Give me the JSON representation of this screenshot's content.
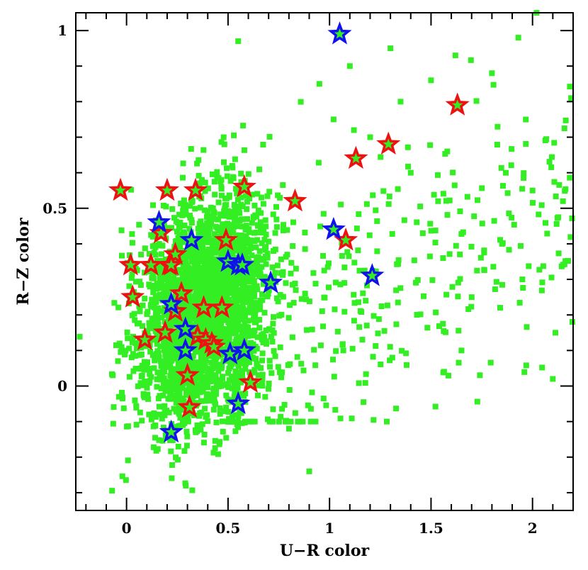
{
  "chart_data": {
    "type": "scatter",
    "xlabel": "U−R color",
    "ylabel": "R−Z color",
    "xlim": [
      -0.25,
      2.2
    ],
    "ylim": [
      -0.35,
      1.05
    ],
    "x_ticks": [
      0,
      0.5,
      1,
      1.5,
      2
    ],
    "x_tick_labels": [
      "0",
      "0.5",
      "1",
      "1.5",
      "2"
    ],
    "y_ticks": [
      0,
      0.5,
      1
    ],
    "y_tick_labels": [
      "0",
      "0.5",
      "1"
    ],
    "grid": false,
    "colors": {
      "background_points": "#33ee22",
      "red_stars": "#ee1111",
      "blue_stars": "#1111ee",
      "star_fill": "#33ee22"
    },
    "series": [
      {
        "marker": "square",
        "color": "#33ee22",
        "note_count_approx": 3000,
        "cloud_model": {
          "core": {
            "x_mean": 0.38,
            "x_sd": 0.17,
            "y_mean": 0.22,
            "y_sd": 0.16,
            "n": 2600
          },
          "tail": {
            "x_min": 0.5,
            "x_max": 2.2,
            "y_min": -0.1,
            "y_max": 1.0,
            "n": 420
          }
        },
        "x": [
          2.02,
          1.93,
          2.19,
          1.62,
          1.8,
          1.35,
          1.02,
          0.55,
          1.3,
          1.65,
          0.8,
          0.9,
          1.1,
          1.5,
          2.15,
          2.1,
          1.7,
          1.95,
          1.4,
          1.2,
          2.0,
          1.85,
          0.95,
          1.58,
          1.12
        ],
        "y": [
          1.05,
          0.98,
          0.81,
          0.93,
          0.88,
          0.8,
          0.75,
          0.97,
          0.95,
          0.1,
          -0.12,
          -0.24,
          0.9,
          0.86,
          0.52,
          0.02,
          0.25,
          0.3,
          0.6,
          0.7,
          0.55,
          0.4,
          0.85,
          0.66,
          0.72
        ]
      },
      {
        "marker": "star",
        "color": "#ee1111",
        "x": [
          -0.03,
          0.2,
          0.34,
          0.58,
          0.83,
          1.13,
          1.29,
          1.63,
          0.17,
          0.24,
          0.49,
          1.08,
          0.02,
          0.12,
          0.21,
          0.22,
          0.03,
          0.27,
          0.24,
          0.38,
          0.47,
          0.09,
          0.19,
          0.35,
          0.39,
          0.42,
          0.43,
          0.3,
          0.31,
          0.61
        ],
        "y": [
          0.55,
          0.55,
          0.55,
          0.56,
          0.52,
          0.64,
          0.68,
          0.79,
          0.43,
          0.37,
          0.41,
          0.41,
          0.34,
          0.34,
          0.34,
          0.34,
          0.25,
          0.26,
          0.21,
          0.22,
          0.22,
          0.13,
          0.15,
          0.14,
          0.13,
          0.12,
          0.11,
          0.03,
          -0.06,
          0.01
        ]
      },
      {
        "marker": "star",
        "color": "#1111ee",
        "x": [
          1.05,
          0.16,
          0.32,
          1.02,
          0.5,
          0.55,
          0.57,
          1.21,
          0.71,
          0.22,
          0.29,
          0.29,
          0.51,
          0.58,
          0.55,
          0.22
        ],
        "y": [
          0.99,
          0.46,
          0.41,
          0.44,
          0.35,
          0.34,
          0.34,
          0.31,
          0.29,
          0.23,
          0.16,
          0.1,
          0.09,
          0.1,
          -0.05,
          -0.13
        ]
      }
    ]
  }
}
